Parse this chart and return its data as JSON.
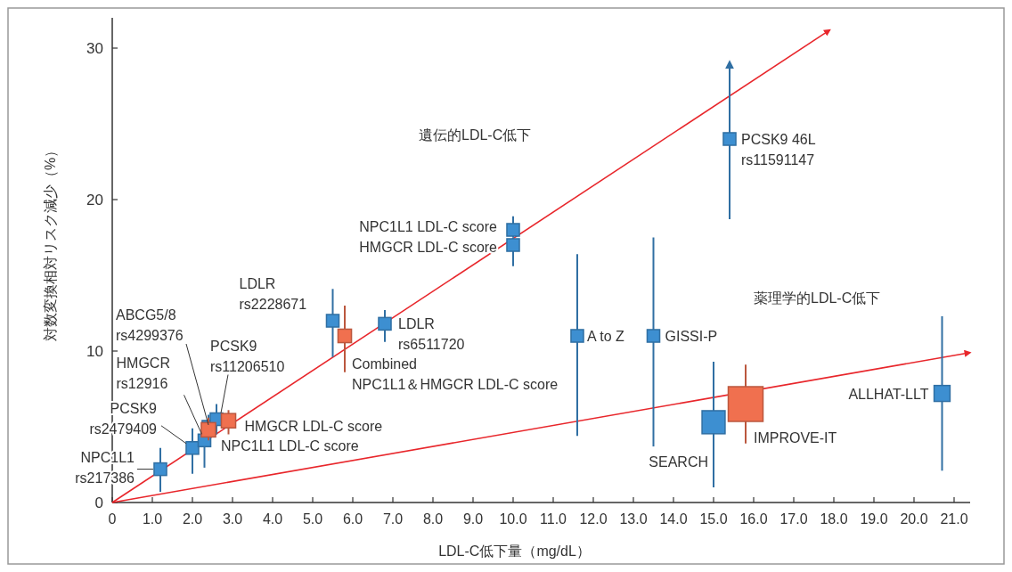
{
  "chart_data": {
    "type": "bubble",
    "xlabel": "LDL-C低下量（mg/dL）",
    "ylabel": "対数変換相対リスク減少（%）",
    "marker": "square",
    "xlim": [
      0,
      21.4
    ],
    "ylim": [
      0,
      32
    ],
    "xticks": [
      0,
      {
        "value": 1,
        "label": "1.0"
      },
      {
        "value": 2,
        "label": "2.0"
      },
      {
        "value": 3,
        "label": "3.0"
      },
      {
        "value": 4,
        "label": "4.0"
      },
      {
        "value": 5,
        "label": "5.0"
      },
      {
        "value": 6,
        "label": "6.0"
      },
      {
        "value": 7,
        "label": "7.0"
      },
      {
        "value": 8,
        "label": "8.0"
      },
      {
        "value": 9,
        "label": "9.0"
      },
      {
        "value": 10,
        "label": "10.0"
      },
      {
        "value": 11,
        "label": "11.0"
      },
      {
        "value": 12,
        "label": "12.0"
      },
      {
        "value": 13,
        "label": "13.0"
      },
      {
        "value": 14,
        "label": "14.0"
      },
      {
        "value": 15,
        "label": "15.0"
      },
      {
        "value": 16,
        "label": "16.0"
      },
      {
        "value": 17,
        "label": "17.0"
      },
      {
        "value": 18,
        "label": "18.0"
      },
      {
        "value": 19,
        "label": "19.0"
      },
      {
        "value": 20,
        "label": "20.0"
      },
      {
        "value": 21,
        "label": "21.0"
      }
    ],
    "yticks": [
      0,
      10,
      20,
      30
    ],
    "series": [
      {
        "type": "line",
        "color": "#e8262b",
        "marker": "none",
        "x": [
          0,
          17.9
        ],
        "values": [
          0,
          31.2
        ]
      },
      {
        "type": "line",
        "color": "#e8262b",
        "marker": "none",
        "x": [
          0,
          21.4
        ],
        "values": [
          0,
          9.9
        ]
      },
      {
        "color": "#3d8fd1",
        "x": [
          1.2,
          2.0,
          2.3,
          2.4,
          2.6,
          5.5,
          6.8,
          10,
          10,
          11.6,
          13.5,
          15.4,
          15.0,
          20.7
        ],
        "values": [
          2.2,
          3.6,
          4.1,
          5.0,
          5.5,
          12.0,
          11.8,
          18.0,
          17.0,
          11.0,
          11.0,
          24.0,
          5.3,
          7.2
        ],
        "errors": [
          [
            0.7,
            3.6
          ],
          [
            1.9,
            4.9
          ],
          [
            2.3,
            4.9
          ],
          [
            4.5,
            5.8
          ],
          [
            4.5,
            6.5
          ],
          [
            9.6,
            14.1
          ],
          [
            10.6,
            12.7
          ],
          [
            17.5,
            18.9
          ],
          [
            15.6,
            17.5
          ],
          [
            4.4,
            16.4
          ],
          [
            3.7,
            17.5
          ],
          [
            18.7,
            29.1
          ],
          [
            1.0,
            9.3
          ],
          [
            2.1,
            12.3
          ]
        ],
        "sizes": [
          0.13,
          0.13,
          0.13,
          0.13,
          0.13,
          0.13,
          0.13,
          0.13,
          0.13,
          0.13,
          0.13,
          0.13,
          0.44,
          0.21
        ]
      },
      {
        "color": "#f0704f",
        "x": [
          2.4,
          2.9,
          5.8,
          15.8
        ],
        "values": [
          4.8,
          5.4,
          11.0,
          6.5
        ],
        "errors": [
          [
            4.1,
            5.6
          ],
          [
            4.5,
            6.1
          ],
          [
            8.6,
            13.0
          ],
          [
            3.9,
            9.1
          ]
        ],
        "sizes": [
          0.17,
          0.17,
          0.15,
          1
        ]
      }
    ],
    "annotations": [
      {
        "text": "NPC1L1\nrs217386",
        "x": 1.2,
        "y": 2.2
      },
      {
        "text": "PCSK9\nrs2479409",
        "x": 2.0,
        "y": 3.6
      },
      {
        "text": "HMGCR\nrs12916",
        "x": 2.3,
        "y": 4.1
      },
      {
        "text": "ABCG5/8\nrs4299376",
        "x": 2.4,
        "y": 5.0
      },
      {
        "text": "PCSK9\nrs11206510",
        "x": 2.6,
        "y": 5.5
      },
      {
        "text": "NPC1L1 LDL-C score",
        "x": 2.4,
        "y": 4.8
      },
      {
        "text": "HMGCR LDL-C score",
        "x": 2.9,
        "y": 5.4
      },
      {
        "text": "LDLR\nrs2228671",
        "x": 5.5,
        "y": 12.0
      },
      {
        "text": "LDLR\nrs6511720",
        "x": 6.8,
        "y": 11.8
      },
      {
        "text": "Combined\nNPC1L1＆HMGCR LDL-C score",
        "x": 5.8,
        "y": 11.0
      },
      {
        "text": "NPC1L1 LDL-C score",
        "x": 10,
        "y": 18.0
      },
      {
        "text": "HMGCR LDL-C score",
        "x": 10,
        "y": 17.0
      },
      {
        "text": "A to Z",
        "x": 11.6,
        "y": 11.0
      },
      {
        "text": "GISSI-P",
        "x": 13.5,
        "y": 11.0
      },
      {
        "text": "PCSK9 46L\nrs11591147",
        "x": 15.4,
        "y": 24.0
      },
      {
        "text": "SEARCH",
        "x": 15.0,
        "y": 5.3
      },
      {
        "text": "IMPROVE-IT",
        "x": 15.8,
        "y": 6.5
      },
      {
        "text": "ALLHAT-LLT",
        "x": 20.7,
        "y": 7.2
      },
      "遺伝的LDL-C低下",
      "薬理学的LDL-C低下"
    ]
  }
}
